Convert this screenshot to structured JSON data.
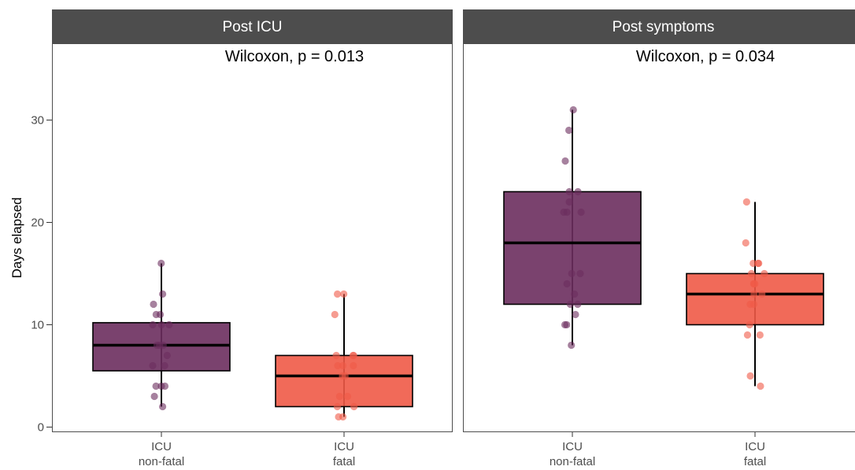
{
  "chart_data": {
    "type": "box",
    "ylabel": "Days elapsed",
    "ylim": [
      -0.5,
      37.5
    ],
    "yticks": [
      0,
      10,
      20,
      30
    ],
    "categories": [
      {
        "line1": "ICU",
        "line2": "non-fatal",
        "color": "#6b2d5e"
      },
      {
        "line1": "ICU",
        "line2": "fatal",
        "color": "#f05a47"
      }
    ],
    "panels": [
      {
        "title": "Post ICU",
        "annotation": "Wilcoxon, p = 0.013",
        "boxes": [
          {
            "q1": 5.5,
            "median": 8,
            "q3": 10.2,
            "whisker_low": 2,
            "whisker_high": 16,
            "points": [
              16,
              13,
              12,
              11,
              11,
              10,
              10,
              10,
              8,
              8,
              8,
              7,
              6,
              6,
              4,
              4,
              4,
              3,
              2
            ]
          },
          {
            "q1": 2,
            "median": 5,
            "q3": 7,
            "whisker_low": 1,
            "whisker_high": 13,
            "points": [
              13,
              13,
              11,
              7,
              7,
              7,
              6,
              6,
              6,
              5,
              5,
              3,
              3,
              2,
              2,
              1,
              1
            ]
          }
        ]
      },
      {
        "title": "Post symptoms",
        "annotation": "Wilcoxon, p = 0.034",
        "boxes": [
          {
            "q1": 12,
            "median": 18,
            "q3": 23,
            "whisker_low": 8,
            "whisker_high": 31,
            "points": [
              31,
              29,
              26,
              23,
              23,
              22,
              21,
              21,
              21,
              15,
              15,
              14,
              13,
              12,
              12,
              11,
              10,
              10,
              8
            ]
          },
          {
            "q1": 10,
            "median": 13,
            "q3": 15,
            "whisker_low": 4,
            "whisker_high": 22,
            "points": [
              22,
              18,
              16,
              16,
              16,
              15,
              15,
              14,
              14,
              14,
              13,
              13,
              12,
              12,
              10,
              9,
              9,
              5,
              4
            ]
          }
        ]
      }
    ]
  }
}
